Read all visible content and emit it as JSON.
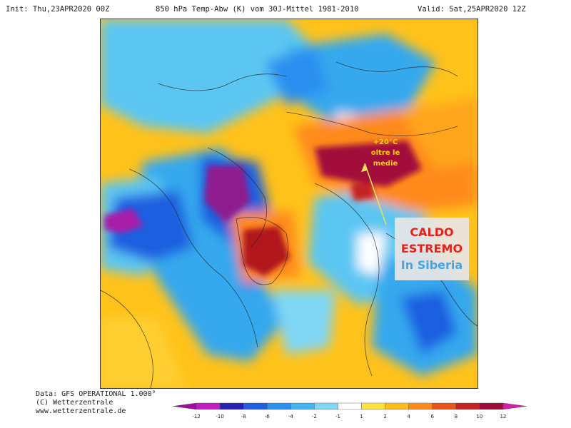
{
  "header": {
    "init": "Init: Thu,23APR2020 00Z",
    "title": "850 hPa Temp-Abw (K) vom 30J-Mittel 1981-2010",
    "valid": "Valid: Sat,25APR2020 12Z"
  },
  "annotations": {
    "temp_line1": "+20°C",
    "temp_line2": "oltre le",
    "temp_line3": "medie",
    "caldo_line1": "CALDO",
    "caldo_line2": "ESTREMO",
    "caldo_line3": "In Siberia"
  },
  "footer": {
    "line1": "Data: GFS OPERATIONAL 1.000°",
    "line2": "(C) Wetterzentrale",
    "line3": "www.wetterzentrale.de"
  },
  "colorbar": {
    "ticks": [
      "-12",
      "-10",
      "-8",
      "-6",
      "-4",
      "-2",
      "-1",
      "1",
      "2",
      "4",
      "6",
      "8",
      "10",
      "12"
    ],
    "colors": [
      "#9c0d9c",
      "#c21bc4",
      "#2a1fb5",
      "#1f5fe0",
      "#2b8ff0",
      "#42b6f2",
      "#7fd6f5",
      "#ffffff",
      "#ffe23a",
      "#ffbd1a",
      "#ff8a1a",
      "#e8541a",
      "#c42320",
      "#9c0d3a",
      "#d61fa8"
    ]
  },
  "colors": {
    "cold_extreme": "#8e1b8f",
    "warm_extreme": "#a30e3a",
    "arrow": "#e8e05a"
  }
}
